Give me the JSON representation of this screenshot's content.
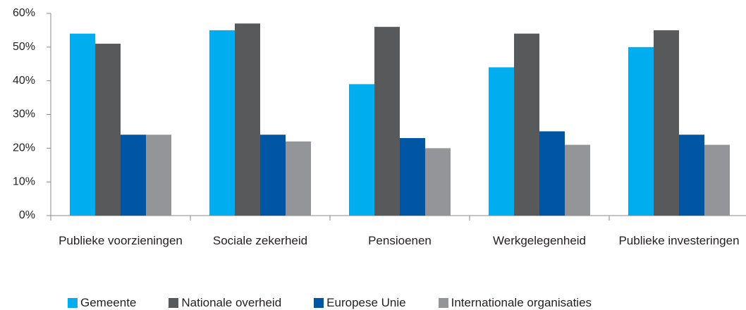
{
  "chart_data": {
    "type": "bar",
    "categories": [
      "Publieke voorzieningen",
      "Sociale zekerheid",
      "Pensioenen",
      "Werkgelegenheid",
      "Publieke investeringen"
    ],
    "series": [
      {
        "name": "Gemeente",
        "color": "#00aeef",
        "values": [
          54,
          55,
          39,
          44,
          50
        ]
      },
      {
        "name": "Nationale overheid",
        "color": "#58595b",
        "values": [
          51,
          57,
          56,
          54,
          55
        ]
      },
      {
        "name": "Europese Unie",
        "color": "#0055a5",
        "values": [
          24,
          24,
          23,
          25,
          24
        ]
      },
      {
        "name": "Internationale organisaties",
        "color": "#939598",
        "values": [
          24,
          22,
          20,
          21,
          21
        ]
      }
    ],
    "ylim": [
      0,
      60
    ],
    "yticks": [
      {
        "value": 0,
        "label": "0%"
      },
      {
        "value": 10,
        "label": "10%"
      },
      {
        "value": 20,
        "label": "20%"
      },
      {
        "value": 30,
        "label": "30%"
      },
      {
        "value": 40,
        "label": "40%"
      },
      {
        "value": 50,
        "label": "50%"
      },
      {
        "value": 60,
        "label": "60%"
      }
    ],
    "legend": "bottom"
  }
}
